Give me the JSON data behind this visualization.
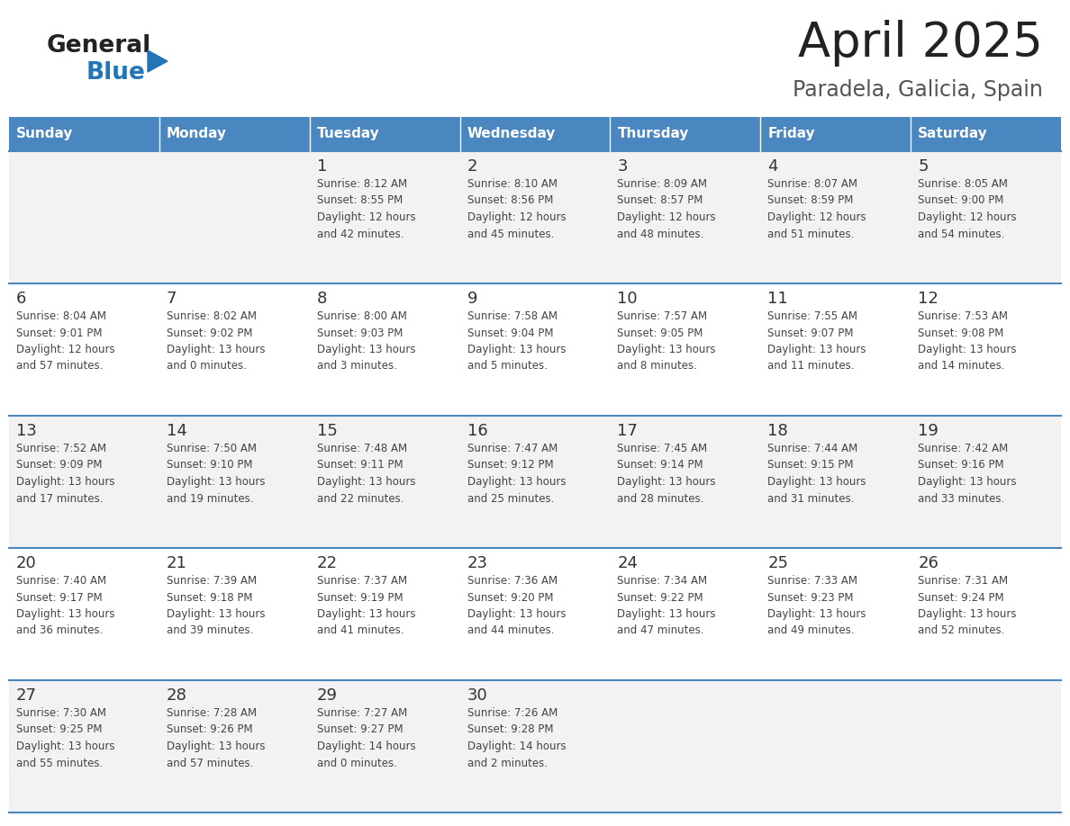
{
  "title": "April 2025",
  "subtitle": "Paradela, Galicia, Spain",
  "header_color": "#4a86c0",
  "header_text_color": "#ffffff",
  "day_names": [
    "Sunday",
    "Monday",
    "Tuesday",
    "Wednesday",
    "Thursday",
    "Friday",
    "Saturday"
  ],
  "weeks": [
    [
      {
        "day": "",
        "info": ""
      },
      {
        "day": "",
        "info": ""
      },
      {
        "day": "1",
        "info": "Sunrise: 8:12 AM\nSunset: 8:55 PM\nDaylight: 12 hours\nand 42 minutes."
      },
      {
        "day": "2",
        "info": "Sunrise: 8:10 AM\nSunset: 8:56 PM\nDaylight: 12 hours\nand 45 minutes."
      },
      {
        "day": "3",
        "info": "Sunrise: 8:09 AM\nSunset: 8:57 PM\nDaylight: 12 hours\nand 48 minutes."
      },
      {
        "day": "4",
        "info": "Sunrise: 8:07 AM\nSunset: 8:59 PM\nDaylight: 12 hours\nand 51 minutes."
      },
      {
        "day": "5",
        "info": "Sunrise: 8:05 AM\nSunset: 9:00 PM\nDaylight: 12 hours\nand 54 minutes."
      }
    ],
    [
      {
        "day": "6",
        "info": "Sunrise: 8:04 AM\nSunset: 9:01 PM\nDaylight: 12 hours\nand 57 minutes."
      },
      {
        "day": "7",
        "info": "Sunrise: 8:02 AM\nSunset: 9:02 PM\nDaylight: 13 hours\nand 0 minutes."
      },
      {
        "day": "8",
        "info": "Sunrise: 8:00 AM\nSunset: 9:03 PM\nDaylight: 13 hours\nand 3 minutes."
      },
      {
        "day": "9",
        "info": "Sunrise: 7:58 AM\nSunset: 9:04 PM\nDaylight: 13 hours\nand 5 minutes."
      },
      {
        "day": "10",
        "info": "Sunrise: 7:57 AM\nSunset: 9:05 PM\nDaylight: 13 hours\nand 8 minutes."
      },
      {
        "day": "11",
        "info": "Sunrise: 7:55 AM\nSunset: 9:07 PM\nDaylight: 13 hours\nand 11 minutes."
      },
      {
        "day": "12",
        "info": "Sunrise: 7:53 AM\nSunset: 9:08 PM\nDaylight: 13 hours\nand 14 minutes."
      }
    ],
    [
      {
        "day": "13",
        "info": "Sunrise: 7:52 AM\nSunset: 9:09 PM\nDaylight: 13 hours\nand 17 minutes."
      },
      {
        "day": "14",
        "info": "Sunrise: 7:50 AM\nSunset: 9:10 PM\nDaylight: 13 hours\nand 19 minutes."
      },
      {
        "day": "15",
        "info": "Sunrise: 7:48 AM\nSunset: 9:11 PM\nDaylight: 13 hours\nand 22 minutes."
      },
      {
        "day": "16",
        "info": "Sunrise: 7:47 AM\nSunset: 9:12 PM\nDaylight: 13 hours\nand 25 minutes."
      },
      {
        "day": "17",
        "info": "Sunrise: 7:45 AM\nSunset: 9:14 PM\nDaylight: 13 hours\nand 28 minutes."
      },
      {
        "day": "18",
        "info": "Sunrise: 7:44 AM\nSunset: 9:15 PM\nDaylight: 13 hours\nand 31 minutes."
      },
      {
        "day": "19",
        "info": "Sunrise: 7:42 AM\nSunset: 9:16 PM\nDaylight: 13 hours\nand 33 minutes."
      }
    ],
    [
      {
        "day": "20",
        "info": "Sunrise: 7:40 AM\nSunset: 9:17 PM\nDaylight: 13 hours\nand 36 minutes."
      },
      {
        "day": "21",
        "info": "Sunrise: 7:39 AM\nSunset: 9:18 PM\nDaylight: 13 hours\nand 39 minutes."
      },
      {
        "day": "22",
        "info": "Sunrise: 7:37 AM\nSunset: 9:19 PM\nDaylight: 13 hours\nand 41 minutes."
      },
      {
        "day": "23",
        "info": "Sunrise: 7:36 AM\nSunset: 9:20 PM\nDaylight: 13 hours\nand 44 minutes."
      },
      {
        "day": "24",
        "info": "Sunrise: 7:34 AM\nSunset: 9:22 PM\nDaylight: 13 hours\nand 47 minutes."
      },
      {
        "day": "25",
        "info": "Sunrise: 7:33 AM\nSunset: 9:23 PM\nDaylight: 13 hours\nand 49 minutes."
      },
      {
        "day": "26",
        "info": "Sunrise: 7:31 AM\nSunset: 9:24 PM\nDaylight: 13 hours\nand 52 minutes."
      }
    ],
    [
      {
        "day": "27",
        "info": "Sunrise: 7:30 AM\nSunset: 9:25 PM\nDaylight: 13 hours\nand 55 minutes."
      },
      {
        "day": "28",
        "info": "Sunrise: 7:28 AM\nSunset: 9:26 PM\nDaylight: 13 hours\nand 57 minutes."
      },
      {
        "day": "29",
        "info": "Sunrise: 7:27 AM\nSunset: 9:27 PM\nDaylight: 14 hours\nand 0 minutes."
      },
      {
        "day": "30",
        "info": "Sunrise: 7:26 AM\nSunset: 9:28 PM\nDaylight: 14 hours\nand 2 minutes."
      },
      {
        "day": "",
        "info": ""
      },
      {
        "day": "",
        "info": ""
      },
      {
        "day": "",
        "info": ""
      }
    ]
  ],
  "logo_text_general": "General",
  "logo_text_blue": "Blue",
  "background_color": "#ffffff",
  "cell_bg_even": "#f2f2f2",
  "cell_bg_odd": "#ffffff",
  "divider_color": "#4a86c0",
  "text_color": "#444444",
  "day_num_color": "#333333",
  "title_color": "#222222",
  "subtitle_color": "#555555",
  "logo_general_color": "#222222",
  "logo_blue_color": "#2475b8",
  "triangle_color": "#2475b8"
}
